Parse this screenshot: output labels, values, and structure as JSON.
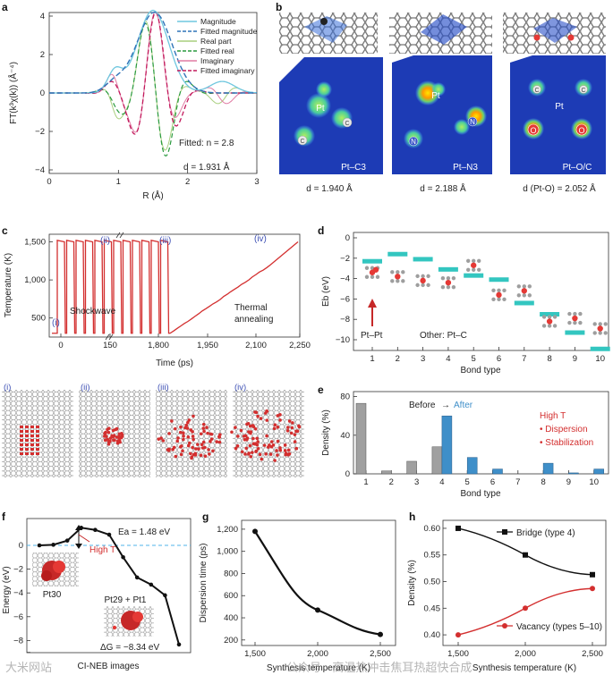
{
  "figure": {
    "panel_letters": [
      "a",
      "b",
      "c",
      "d",
      "e",
      "f",
      "g",
      "h"
    ]
  },
  "panel_a": {
    "legend": [
      "Magnitude",
      "Fitted magnitude",
      "Real part",
      "Fitted real",
      "Imaginary",
      "Fitted imaginary"
    ],
    "fitted_n": "Fitted: n = 2.8",
    "distance": "d = 1.931 Å",
    "xlabel": "R (Å)",
    "ylabel": "FT(k³χ(k)) (Å⁻⁴)",
    "xticks": [
      "0",
      "1",
      "2",
      "3"
    ],
    "yticks": [
      "4",
      "2",
      "0",
      "−2",
      "−4"
    ]
  },
  "panel_b": {
    "structures": [
      {
        "label": "Pt–C3",
        "distance": "d = 1.940 Å",
        "atoms": [
          "Pt",
          "C",
          "C"
        ]
      },
      {
        "label": "Pt–N3",
        "distance": "d = 2.188 Å",
        "atoms": [
          "Pt",
          "N",
          "N"
        ]
      },
      {
        "label": "Pt–O/C",
        "distance": "d (Pt-O) = 2.052 Å",
        "atoms": [
          "Pt",
          "C",
          "C",
          "O",
          "O"
        ]
      }
    ]
  },
  "panel_c": {
    "ylabel": "Temperature (K)",
    "xlabel": "Time (ps)",
    "yticks": [
      "1,500",
      "1,000",
      "500"
    ],
    "xticks": [
      "0",
      "150",
      "1,800",
      "1,950",
      "2,100",
      "2,250"
    ],
    "markers": [
      "(i)",
      "(ii)",
      "(iii)",
      "(iv)"
    ],
    "shockwave": "Shockwave",
    "thermal": "Thermal",
    "annealing": "annealing",
    "snapshots": [
      "(i)",
      "(ii)",
      "(iii)",
      "(iv)"
    ]
  },
  "panel_d": {
    "ylabel": "Eb (eV)",
    "xlabel": "Bond type",
    "yticks": [
      "0",
      "−2",
      "−4",
      "−6",
      "−8",
      "−10"
    ],
    "xticks": [
      "1",
      "2",
      "3",
      "4",
      "5",
      "6",
      "7",
      "8",
      "9",
      "10"
    ],
    "ptpt": "Pt–Pt",
    "other": "Other: Pt–C",
    "bars": [
      -2.3,
      -1.6,
      -2.1,
      -3.1,
      -3.7,
      -4.1,
      -6.4,
      -7.5,
      -9.3,
      -10.9
    ],
    "dots": [
      -3.4,
      -3.8,
      -4.2,
      -4.4,
      -2.7,
      -5.6,
      -5.2,
      -8.2,
      -7.9,
      -8.9
    ]
  },
  "panel_e": {
    "ylabel": "Density (%)",
    "xlabel": "Bond type",
    "yticks": [
      "80",
      "40",
      "0"
    ],
    "xticks": [
      "1",
      "2",
      "3",
      "4",
      "5",
      "6",
      "7",
      "8",
      "9",
      "10"
    ],
    "legend_before": "Before",
    "legend_arrow": "→",
    "legend_after": "After",
    "high_t": "High T",
    "dispersion": "• Dispersion",
    "stabilization": "• Stabilization",
    "before": [
      73,
      3,
      13,
      28,
      0,
      0,
      0,
      0,
      0,
      0
    ],
    "after": [
      0,
      0,
      0,
      60,
      17,
      5,
      0,
      11,
      1,
      5
    ]
  },
  "panel_f": {
    "ylabel": "Energy (eV)",
    "xlabel": "CI-NEB images",
    "yticks": [
      "0",
      "−2",
      "−4",
      "−6",
      "−8"
    ],
    "ea": "Ea = 1.48 eV",
    "high_t": "High T",
    "pt30": "Pt30",
    "pt29": "Pt29 + Pt1",
    "dg": "ΔG = −8.34 eV",
    "energies": [
      0,
      0.05,
      0.4,
      1.48,
      1.3,
      0.9,
      -1.0,
      -2.7,
      -3.3,
      -4.2,
      -8.34
    ]
  },
  "panel_g": {
    "ylabel": "Dispersion time (ps)",
    "xlabel": "Synthesis temperature (K)",
    "yticks": [
      "1,200",
      "1,000",
      "800",
      "600",
      "400",
      "200"
    ],
    "xticks": [
      "1,500",
      "2,000",
      "2,500"
    ],
    "x": [
      1500,
      2000,
      2500
    ],
    "y": [
      1180,
      470,
      250
    ]
  },
  "panel_h": {
    "ylabel": "Density (%)",
    "xlabel": "Synthesis temperature (K)",
    "yticks": [
      "0.60",
      "0.55",
      "0.50",
      "0.45",
      "0.40"
    ],
    "xticks": [
      "1,500",
      "2,000",
      "2,500"
    ],
    "bridge": "Bridge (type 4)",
    "vacancy": "Vacancy (types 5–10)",
    "x": [
      1500,
      2000,
      2500
    ],
    "bridge_y": [
      0.6,
      0.55,
      0.513
    ],
    "vacancy_y": [
      0.4,
      0.45,
      0.487
    ]
  },
  "watermarks": {
    "right": "公众号 · 高温热冲击焦耳热超快合成",
    "left": "大米网站"
  },
  "colors": {
    "magnitude": "#6fc7df",
    "real": "#a9cf7e",
    "imag": "#e07ba3",
    "fit_dark": "#2f73b8",
    "fit_real": "#2a9a3f",
    "fit_imag": "#c2185b",
    "red": "#d32f2f",
    "teal": "#33c6c0",
    "gray": "#a0a0a0",
    "blue": "#3f8fc9"
  }
}
